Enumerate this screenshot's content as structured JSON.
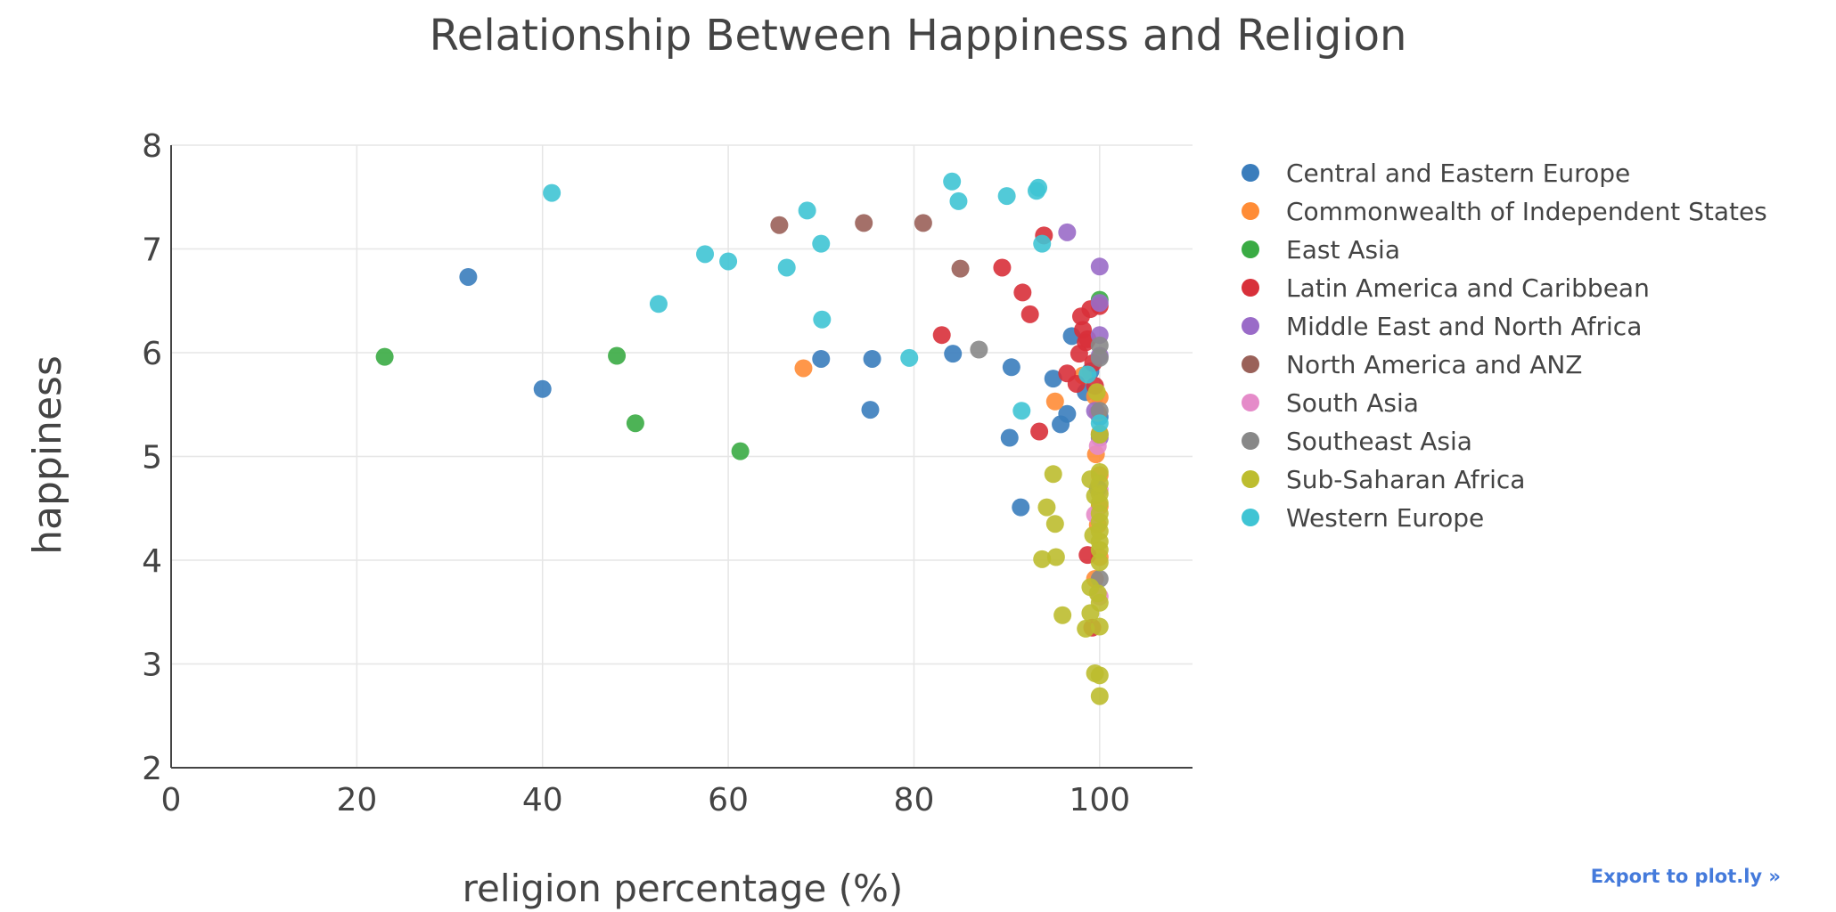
{
  "export_link": "Export to plot.ly »",
  "chart_data": {
    "type": "scatter",
    "title": "Relationship Between Happiness and Religion",
    "xlabel": "religion percentage (%)",
    "ylabel": "happiness",
    "xlim": [
      0,
      110
    ],
    "ylim": [
      2,
      8
    ],
    "xticks": [
      0,
      20,
      40,
      60,
      80,
      100
    ],
    "yticks": [
      2,
      3,
      4,
      5,
      6,
      7,
      8
    ],
    "grid": true,
    "legend_position": "right",
    "series": [
      {
        "name": "Central and Eastern Europe",
        "color": "#3a7dbc",
        "points": [
          [
            32,
            6.73
          ],
          [
            40,
            5.65
          ],
          [
            70,
            5.94
          ],
          [
            75.5,
            5.94
          ],
          [
            75.3,
            5.45
          ],
          [
            84.2,
            5.99
          ],
          [
            90.5,
            5.86
          ],
          [
            90.3,
            5.18
          ],
          [
            91.5,
            4.51
          ],
          [
            95,
            5.75
          ],
          [
            95.8,
            5.31
          ],
          [
            96.5,
            5.41
          ],
          [
            97,
            6.16
          ],
          [
            98.5,
            5.62
          ],
          [
            99,
            5.82
          ],
          [
            100,
            5.38
          ]
        ]
      },
      {
        "name": "Commonwealth of Independent States",
        "color": "#ff8c36",
        "points": [
          [
            68.1,
            5.85
          ],
          [
            95.2,
            5.53
          ],
          [
            98.2,
            5.78
          ],
          [
            99.5,
            5.58
          ],
          [
            99.8,
            5.42
          ],
          [
            100,
            5.57
          ],
          [
            100,
            5.22
          ],
          [
            99.6,
            5.02
          ],
          [
            100,
            4.82
          ],
          [
            100,
            4.52
          ],
          [
            99.8,
            4.34
          ],
          [
            100,
            4.03
          ],
          [
            99.5,
            3.82
          ]
        ]
      },
      {
        "name": "East Asia",
        "color": "#3aab44",
        "points": [
          [
            23,
            5.96
          ],
          [
            48,
            5.97
          ],
          [
            50,
            5.32
          ],
          [
            61.3,
            5.05
          ],
          [
            100,
            6.51
          ]
        ]
      },
      {
        "name": "Latin America and Caribbean",
        "color": "#d8303a",
        "points": [
          [
            83,
            6.17
          ],
          [
            89.5,
            6.82
          ],
          [
            91.7,
            6.58
          ],
          [
            92.5,
            6.37
          ],
          [
            93.5,
            5.24
          ],
          [
            94,
            7.13
          ],
          [
            96.5,
            5.8
          ],
          [
            97.5,
            5.7
          ],
          [
            97.8,
            5.99
          ],
          [
            98,
            6.35
          ],
          [
            98.2,
            6.22
          ],
          [
            98.5,
            6.1
          ],
          [
            98.7,
            6.13
          ],
          [
            99,
            6.42
          ],
          [
            99.3,
            5.9
          ],
          [
            98.7,
            4.05
          ],
          [
            99.2,
            3.35
          ],
          [
            99.5,
            5.68
          ],
          [
            100,
            6.45
          ]
        ]
      },
      {
        "name": "Middle East and North Africa",
        "color": "#9a6bc8",
        "points": [
          [
            96.5,
            7.16
          ],
          [
            100,
            6.83
          ],
          [
            100,
            6.48
          ],
          [
            100,
            6.17
          ],
          [
            100,
            5.97
          ],
          [
            99.5,
            5.44
          ],
          [
            100,
            5.18
          ]
        ]
      },
      {
        "name": "North America and ANZ",
        "color": "#9a6159",
        "points": [
          [
            65.5,
            7.23
          ],
          [
            74.6,
            7.25
          ],
          [
            81,
            7.25
          ],
          [
            85,
            6.81
          ]
        ]
      },
      {
        "name": "South Asia",
        "color": "#e58bc9",
        "points": [
          [
            99.8,
            5.1
          ],
          [
            100,
            4.68
          ],
          [
            99.5,
            4.44
          ],
          [
            100,
            3.65
          ]
        ]
      },
      {
        "name": "Southeast Asia",
        "color": "#888888",
        "points": [
          [
            87,
            6.03
          ],
          [
            100,
            6.07
          ],
          [
            100,
            5.95
          ],
          [
            100,
            5.44
          ],
          [
            100,
            5.21
          ],
          [
            99.8,
            4.69
          ],
          [
            100,
            3.82
          ]
        ]
      },
      {
        "name": "Sub-Saharan Africa",
        "color": "#bdbd2f",
        "points": [
          [
            95,
            4.83
          ],
          [
            94.3,
            4.51
          ],
          [
            95.2,
            4.35
          ],
          [
            95.3,
            4.03
          ],
          [
            93.8,
            4.01
          ],
          [
            96,
            3.47
          ],
          [
            99,
            4.78
          ],
          [
            99.5,
            4.62
          ],
          [
            100,
            4.85
          ],
          [
            100,
            4.74
          ],
          [
            100,
            4.64
          ],
          [
            100,
            4.55
          ],
          [
            100,
            4.45
          ],
          [
            100,
            4.37
          ],
          [
            100,
            4.28
          ],
          [
            100,
            4.18
          ],
          [
            100,
            4.1
          ],
          [
            100,
            3.98
          ],
          [
            99.3,
            4.24
          ],
          [
            100,
            3.59
          ],
          [
            99,
            3.74
          ],
          [
            99,
            3.49
          ],
          [
            98.5,
            3.34
          ],
          [
            100,
            3.36
          ],
          [
            99.5,
            2.91
          ],
          [
            100,
            2.89
          ],
          [
            100,
            2.69
          ],
          [
            99.7,
            5.62
          ],
          [
            100,
            5.21
          ],
          [
            99.8,
            3.68
          ]
        ]
      },
      {
        "name": "Western Europe",
        "color": "#3fc4d4",
        "points": [
          [
            41,
            7.54
          ],
          [
            52.5,
            6.47
          ],
          [
            57.5,
            6.95
          ],
          [
            60,
            6.88
          ],
          [
            66.3,
            6.82
          ],
          [
            68.5,
            7.37
          ],
          [
            70,
            7.05
          ],
          [
            70.1,
            6.32
          ],
          [
            79.5,
            5.95
          ],
          [
            84.1,
            7.65
          ],
          [
            84.8,
            7.46
          ],
          [
            90,
            7.51
          ],
          [
            91.6,
            5.44
          ],
          [
            93.2,
            7.56
          ],
          [
            93.4,
            7.59
          ],
          [
            93.8,
            7.05
          ],
          [
            98.7,
            5.79
          ],
          [
            100,
            5.32
          ]
        ]
      }
    ]
  }
}
